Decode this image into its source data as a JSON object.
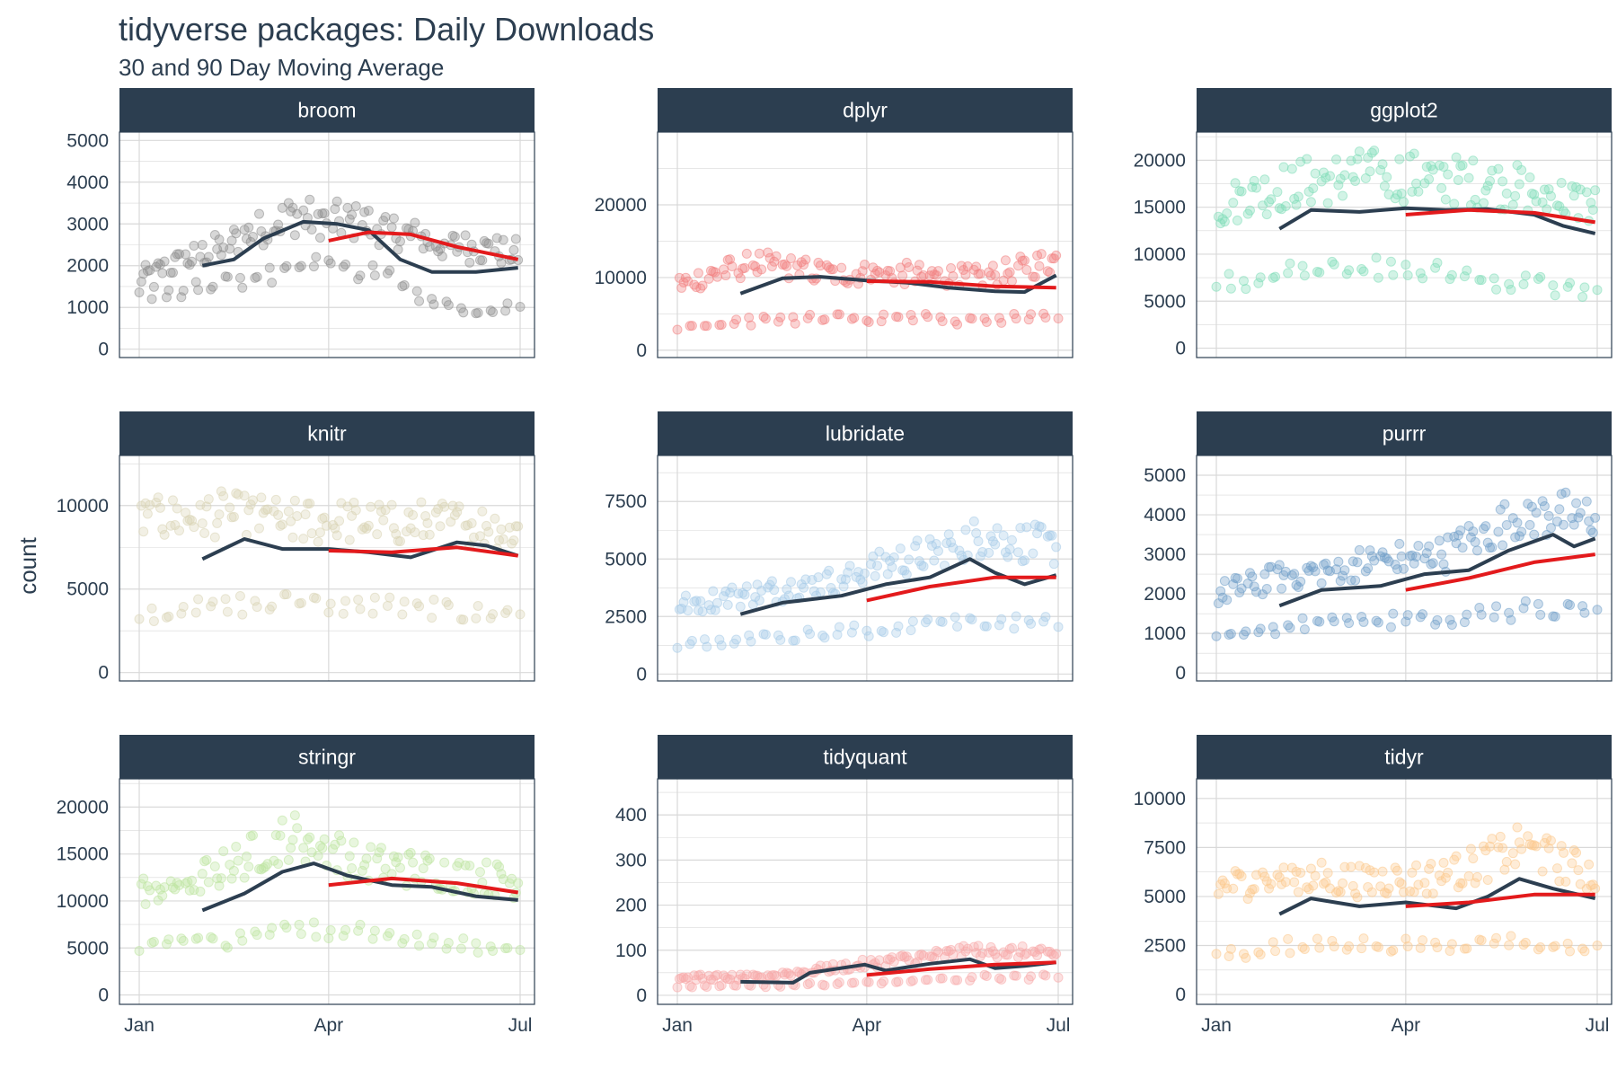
{
  "chart_data": {
    "type": "scatter",
    "title": "tidyverse packages: Daily Downloads",
    "subtitle": "30 and 90 Day Moving Average",
    "xlabel": "",
    "ylabel": "count",
    "x_ticks": [
      "Jan",
      "Apr",
      "Jul"
    ],
    "x_range": [
      "2017-01-01",
      "2017-07-01"
    ],
    "grid": true,
    "legend": "none",
    "colors": {
      "strip_bg": "#2c3e50",
      "ma30": "#2c3e50",
      "ma90": "#e31a1c",
      "grid": "#d9d9d9",
      "panel_border": "#2c3e50",
      "text": "#2c3e50"
    },
    "panels": [
      {
        "package": "broom",
        "point_color": "#8c8c8c",
        "y_ticks": [
          0,
          1000,
          2000,
          3000,
          4000,
          5000
        ],
        "ylim": [
          -200,
          5200
        ],
        "weekday_level": [
          1700,
          2400,
          3200,
          3000,
          2500,
          2300
        ],
        "weekend_level": [
          1300,
          1500,
          2000,
          1900,
          1000,
          950
        ],
        "ma30": [
          [
            "2017-01-31",
            2000
          ],
          [
            "2017-02-15",
            2150
          ],
          [
            "2017-03-01",
            2650
          ],
          [
            "2017-03-20",
            3050
          ],
          [
            "2017-04-05",
            3000
          ],
          [
            "2017-04-20",
            2850
          ],
          [
            "2017-05-05",
            2150
          ],
          [
            "2017-05-20",
            1850
          ],
          [
            "2017-06-10",
            1850
          ],
          [
            "2017-06-30",
            1950
          ]
        ],
        "ma90": [
          [
            "2017-04-01",
            2600
          ],
          [
            "2017-04-20",
            2800
          ],
          [
            "2017-05-10",
            2750
          ],
          [
            "2017-06-01",
            2450
          ],
          [
            "2017-06-30",
            2150
          ]
        ]
      },
      {
        "package": "dplyr",
        "point_color": "#f28080",
        "y_ticks": [
          0,
          10000,
          20000
        ],
        "ylim": [
          -1000,
          30000
        ],
        "weekday_level": [
          9000,
          12000,
          10500,
          10500,
          10000,
          12500
        ],
        "weekend_level": [
          3000,
          4000,
          4500,
          4500,
          4000,
          5000
        ],
        "ma30": [
          [
            "2017-01-31",
            7800
          ],
          [
            "2017-02-20",
            9900
          ],
          [
            "2017-03-10",
            10100
          ],
          [
            "2017-04-01",
            9600
          ],
          [
            "2017-04-20",
            9300
          ],
          [
            "2017-05-10",
            8600
          ],
          [
            "2017-06-01",
            8100
          ],
          [
            "2017-06-15",
            8000
          ],
          [
            "2017-06-30",
            10300
          ]
        ],
        "ma90": [
          [
            "2017-04-01",
            9500
          ],
          [
            "2017-05-01",
            9400
          ],
          [
            "2017-06-01",
            8800
          ],
          [
            "2017-06-30",
            8600
          ]
        ]
      },
      {
        "package": "ggplot2",
        "point_color": "#7fdcb8",
        "y_ticks": [
          0,
          5000,
          10000,
          15000,
          20000
        ],
        "ylim": [
          -1000,
          23000
        ],
        "weekday_level": [
          15000,
          17500,
          18500,
          18000,
          17000,
          15000
        ],
        "weekend_level": [
          7000,
          8000,
          8500,
          8000,
          7000,
          6000
        ],
        "ma30": [
          [
            "2017-01-31",
            12700
          ],
          [
            "2017-02-15",
            14700
          ],
          [
            "2017-03-10",
            14500
          ],
          [
            "2017-04-01",
            14900
          ],
          [
            "2017-04-20",
            14700
          ],
          [
            "2017-05-10",
            14800
          ],
          [
            "2017-06-01",
            14200
          ],
          [
            "2017-06-15",
            13000
          ],
          [
            "2017-06-30",
            12200
          ]
        ],
        "ma90": [
          [
            "2017-04-01",
            14200
          ],
          [
            "2017-05-01",
            14700
          ],
          [
            "2017-06-01",
            14400
          ],
          [
            "2017-06-30",
            13400
          ]
        ]
      },
      {
        "package": "knitr",
        "point_color": "#d9d3b4",
        "y_ticks": [
          0,
          5000,
          10000
        ],
        "ylim": [
          -500,
          13000
        ],
        "weekday_level": [
          9000,
          9500,
          9000,
          9000,
          9000,
          8500
        ],
        "weekend_level": [
          3500,
          4000,
          4200,
          4000,
          3800,
          3500
        ],
        "ma30": [
          [
            "2017-01-31",
            6800
          ],
          [
            "2017-02-20",
            8000
          ],
          [
            "2017-03-10",
            7400
          ],
          [
            "2017-04-01",
            7400
          ],
          [
            "2017-04-20",
            7200
          ],
          [
            "2017-05-10",
            6900
          ],
          [
            "2017-06-01",
            7800
          ],
          [
            "2017-06-15",
            7600
          ],
          [
            "2017-06-30",
            7000
          ]
        ],
        "ma90": [
          [
            "2017-04-01",
            7300
          ],
          [
            "2017-05-01",
            7200
          ],
          [
            "2017-06-01",
            7500
          ],
          [
            "2017-06-30",
            7000
          ]
        ]
      },
      {
        "package": "lubridate",
        "point_color": "#a6cbe8",
        "y_ticks": [
          0,
          2500,
          5000,
          7500
        ],
        "ylim": [
          -300,
          9500
        ],
        "weekday_level": [
          3000,
          3500,
          4000,
          5000,
          6000,
          5500
        ],
        "weekend_level": [
          1200,
          1600,
          1800,
          2000,
          2300,
          2200
        ],
        "ma30": [
          [
            "2017-01-31",
            2600
          ],
          [
            "2017-02-20",
            3100
          ],
          [
            "2017-03-20",
            3400
          ],
          [
            "2017-04-10",
            3900
          ],
          [
            "2017-05-01",
            4200
          ],
          [
            "2017-05-20",
            5000
          ],
          [
            "2017-06-01",
            4400
          ],
          [
            "2017-06-15",
            3900
          ],
          [
            "2017-06-30",
            4300
          ]
        ],
        "ma90": [
          [
            "2017-04-01",
            3200
          ],
          [
            "2017-05-01",
            3800
          ],
          [
            "2017-06-01",
            4200
          ],
          [
            "2017-06-30",
            4200
          ]
        ]
      },
      {
        "package": "purrr",
        "point_color": "#6f9ec9",
        "y_ticks": [
          0,
          1000,
          2000,
          3000,
          4000,
          5000
        ],
        "ylim": [
          -200,
          5500
        ],
        "weekday_level": [
          2000,
          2500,
          2800,
          3000,
          4000,
          4000
        ],
        "weekend_level": [
          900,
          1200,
          1300,
          1400,
          1600,
          1500
        ],
        "ma30": [
          [
            "2017-01-31",
            1700
          ],
          [
            "2017-02-20",
            2100
          ],
          [
            "2017-03-20",
            2200
          ],
          [
            "2017-04-10",
            2500
          ],
          [
            "2017-05-01",
            2600
          ],
          [
            "2017-05-20",
            3100
          ],
          [
            "2017-06-10",
            3500
          ],
          [
            "2017-06-20",
            3200
          ],
          [
            "2017-06-30",
            3400
          ]
        ],
        "ma90": [
          [
            "2017-04-01",
            2100
          ],
          [
            "2017-05-01",
            2400
          ],
          [
            "2017-06-01",
            2800
          ],
          [
            "2017-06-30",
            3000
          ]
        ]
      },
      {
        "package": "stringr",
        "point_color": "#bde4a0",
        "y_ticks": [
          0,
          5000,
          10000,
          15000,
          20000
        ],
        "ylim": [
          -1000,
          23000
        ],
        "weekday_level": [
          11000,
          13000,
          17000,
          14000,
          13000,
          12000
        ],
        "weekend_level": [
          5000,
          5500,
          7000,
          6500,
          5500,
          5000
        ],
        "ma30": [
          [
            "2017-01-31",
            9000
          ],
          [
            "2017-02-20",
            10800
          ],
          [
            "2017-03-10",
            13100
          ],
          [
            "2017-03-25",
            14000
          ],
          [
            "2017-04-10",
            12700
          ],
          [
            "2017-05-01",
            11700
          ],
          [
            "2017-05-20",
            11500
          ],
          [
            "2017-06-10",
            10500
          ],
          [
            "2017-06-30",
            10100
          ]
        ],
        "ma90": [
          [
            "2017-04-01",
            11700
          ],
          [
            "2017-05-01",
            12400
          ],
          [
            "2017-06-01",
            11900
          ],
          [
            "2017-06-30",
            10900
          ]
        ]
      },
      {
        "package": "tidyquant",
        "point_color": "#f7a8a8",
        "y_ticks": [
          0,
          100,
          200,
          300,
          400
        ],
        "ylim": [
          -20,
          480
        ],
        "weekday_level": [
          40,
          40,
          60,
          80,
          100,
          90
        ],
        "weekend_level": [
          20,
          20,
          25,
          30,
          40,
          40
        ],
        "ma30": [
          [
            "2017-01-31",
            30
          ],
          [
            "2017-02-25",
            28
          ],
          [
            "2017-03-05",
            50
          ],
          [
            "2017-03-31",
            68
          ],
          [
            "2017-04-10",
            55
          ],
          [
            "2017-05-01",
            70
          ],
          [
            "2017-05-20",
            80
          ],
          [
            "2017-06-01",
            60
          ],
          [
            "2017-06-15",
            65
          ],
          [
            "2017-06-30",
            73
          ]
        ],
        "ma90": [
          [
            "2017-04-01",
            45
          ],
          [
            "2017-05-01",
            58
          ],
          [
            "2017-06-01",
            68
          ],
          [
            "2017-06-30",
            73
          ]
        ]
      },
      {
        "package": "tidyr",
        "point_color": "#fcc98c",
        "y_ticks": [
          0,
          2500,
          5000,
          7500,
          10000
        ],
        "ylim": [
          -500,
          11000
        ],
        "weekday_level": [
          5500,
          6000,
          5800,
          6000,
          7500,
          6000
        ],
        "weekend_level": [
          2000,
          2500,
          2500,
          2600,
          2700,
          2300
        ],
        "ma30": [
          [
            "2017-01-31",
            4100
          ],
          [
            "2017-02-15",
            4900
          ],
          [
            "2017-03-10",
            4500
          ],
          [
            "2017-04-01",
            4700
          ],
          [
            "2017-04-25",
            4400
          ],
          [
            "2017-05-10",
            5000
          ],
          [
            "2017-05-25",
            5900
          ],
          [
            "2017-06-10",
            5400
          ],
          [
            "2017-06-30",
            4900
          ]
        ],
        "ma90": [
          [
            "2017-04-01",
            4500
          ],
          [
            "2017-05-01",
            4700
          ],
          [
            "2017-06-01",
            5100
          ],
          [
            "2017-06-30",
            5100
          ]
        ]
      }
    ]
  }
}
